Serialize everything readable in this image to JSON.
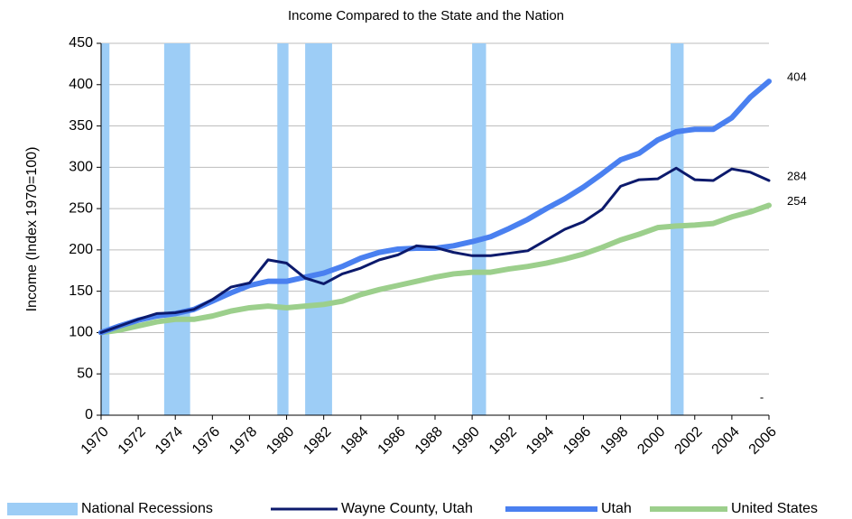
{
  "chart_data": {
    "type": "line",
    "title": "Income Compared to the State and the Nation",
    "y_label": "Income (Index 1970=100)",
    "x": [
      1970,
      1971,
      1972,
      1973,
      1974,
      1975,
      1976,
      1977,
      1978,
      1979,
      1980,
      1981,
      1982,
      1983,
      1984,
      1985,
      1986,
      1987,
      1988,
      1989,
      1990,
      1991,
      1992,
      1993,
      1994,
      1995,
      1996,
      1997,
      1998,
      1999,
      2000,
      2001,
      2002,
      2003,
      2004,
      2005,
      2006
    ],
    "xlim": [
      1970,
      2006
    ],
    "xticks": [
      1970,
      1972,
      1974,
      1976,
      1978,
      1980,
      1982,
      1984,
      1986,
      1988,
      1990,
      1992,
      1994,
      1996,
      1998,
      2000,
      2002,
      2004,
      2006
    ],
    "ylim": [
      0,
      450
    ],
    "yticks": [
      0,
      50,
      100,
      150,
      200,
      250,
      300,
      350,
      400,
      450
    ],
    "grid": true,
    "legend": "bottom",
    "recessions": {
      "name": "National Recessions",
      "color": "#9dcdf6",
      "ranges": [
        [
          1970,
          1970.45
        ],
        [
          1973.4,
          1974.8
        ],
        [
          1979.5,
          1980.1
        ],
        [
          1981.0,
          1982.45
        ],
        [
          1990.0,
          1990.75
        ],
        [
          2000.7,
          2001.4
        ]
      ]
    },
    "series": [
      {
        "name": "Wayne County, Utah",
        "color": "#0c1a6c",
        "width": 3,
        "values": [
          100,
          108,
          116,
          123,
          124,
          128,
          140,
          155,
          160,
          188,
          184,
          166,
          159,
          171,
          178,
          188,
          194,
          205,
          203,
          197,
          193,
          193,
          196,
          199,
          212,
          225,
          234,
          249,
          277,
          285,
          286,
          299,
          285,
          284,
          298,
          294,
          284
        ]
      },
      {
        "name": "Utah",
        "color": "#4a80f0",
        "width": 6,
        "values": [
          100,
          108,
          115,
          120,
          123,
          128,
          138,
          148,
          157,
          162,
          162,
          167,
          172,
          180,
          190,
          197,
          201,
          202,
          202,
          205,
          210,
          216,
          226,
          237,
          250,
          262,
          276,
          292,
          309,
          317,
          333,
          343,
          346,
          346,
          360,
          385,
          404
        ]
      },
      {
        "name": "United States",
        "color": "#9ccf8c",
        "width": 6,
        "values": [
          100,
          103,
          108,
          113,
          116,
          116,
          120,
          126,
          130,
          132,
          130,
          132,
          134,
          138,
          146,
          152,
          157,
          162,
          167,
          171,
          173,
          173,
          177,
          180,
          184,
          189,
          195,
          203,
          212,
          219,
          227,
          229,
          230,
          232,
          240,
          246,
          254
        ]
      }
    ],
    "annotation": "-"
  }
}
